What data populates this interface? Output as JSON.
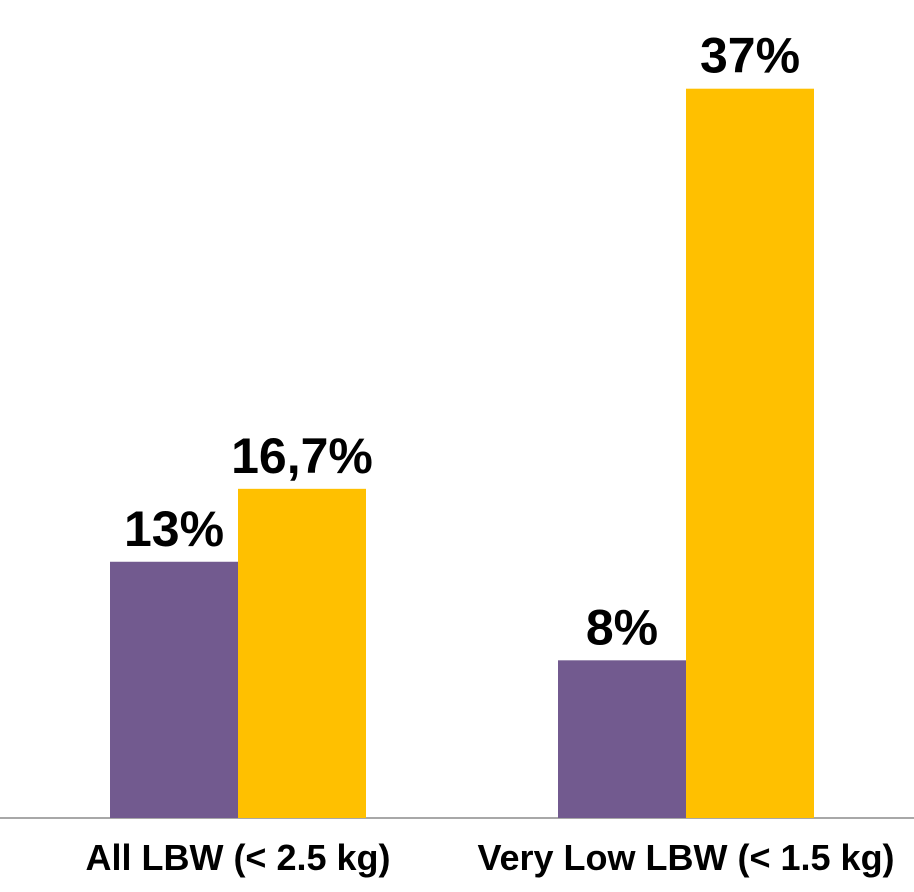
{
  "chart_data": {
    "type": "bar",
    "categories": [
      "All LBW (< 2.5 kg)",
      "Very Low LBW (< 1.5 kg)"
    ],
    "series": [
      {
        "values": [
          13,
          8
        ],
        "labels": [
          "13%",
          "8%"
        ],
        "color": "#725A8F"
      },
      {
        "values": [
          16.7,
          37
        ],
        "labels": [
          "16,7%",
          "37%"
        ],
        "color": "#FFC000"
      }
    ],
    "title": "",
    "xlabel": "",
    "ylabel": "",
    "ylim": [
      0,
      41.5
    ],
    "grid": false,
    "legend": "none",
    "axis_color": "#8C8C8C"
  }
}
